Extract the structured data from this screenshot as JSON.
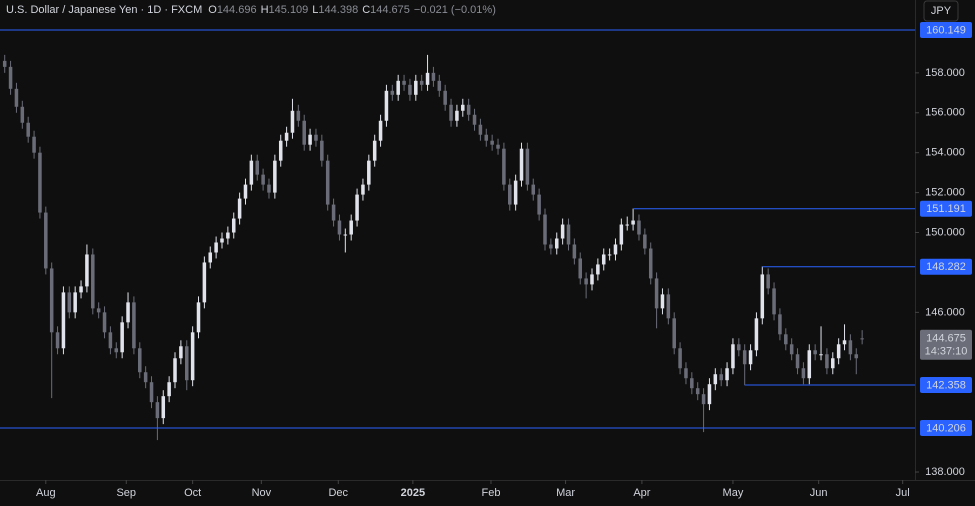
{
  "header": {
    "symbol": "U.S. Dollar / Japanese Yen · 1D · FXCM",
    "ohlc_letters": [
      "O",
      "H",
      "L",
      "C"
    ],
    "change": "−0.021 (−0.01%)",
    "currency": "JPY",
    "countdown": "14:37:10"
  },
  "chart_data": {
    "type": "candlestick",
    "up_color": "#e0e3eb",
    "down_color": "#6a6d78",
    "level_color": "#2962ff",
    "grid": false,
    "xlim": [
      -0.8,
      155
    ],
    "ylim": [
      137.6,
      161.65
    ],
    "xticks": [
      {
        "value": 7,
        "label": "Aug"
      },
      {
        "value": 20.7,
        "label": "Sep"
      },
      {
        "value": 32,
        "label": "Oct"
      },
      {
        "value": 43.7,
        "label": "Nov"
      },
      {
        "value": 56.8,
        "label": "Dec"
      },
      {
        "value": 69.5,
        "label": "2025"
      },
      {
        "value": 82.8,
        "label": "Feb"
      },
      {
        "value": 95.5,
        "label": "Mar"
      },
      {
        "value": 108.5,
        "label": "Apr"
      },
      {
        "value": 124,
        "label": "May"
      },
      {
        "value": 138.6,
        "label": "Jun"
      },
      {
        "value": 152.9,
        "label": "Jul"
      }
    ],
    "yticks": [
      {
        "value": 138,
        "label": "138.000"
      },
      {
        "value": 146,
        "label": "146.000"
      },
      {
        "value": 150,
        "label": "150.000"
      },
      {
        "value": 152,
        "label": "152.000"
      },
      {
        "value": 154,
        "label": "154.000"
      },
      {
        "value": 156,
        "label": "156.000"
      },
      {
        "value": 158,
        "label": "158.000"
      }
    ],
    "levels": [
      {
        "value": 160.149,
        "extend": "both"
      },
      {
        "value": 151.191,
        "extend": "right"
      },
      {
        "value": 148.282,
        "extend": "right"
      },
      {
        "value": 142.358,
        "extend": "right"
      },
      {
        "value": 140.206,
        "extend": "both"
      }
    ],
    "candles": [
      [
        158.6,
        158.9,
        158.0,
        158.3
      ],
      [
        158.3,
        158.6,
        156.9,
        157.2
      ],
      [
        157.2,
        157.5,
        156.0,
        156.3
      ],
      [
        156.3,
        156.6,
        155.2,
        155.5
      ],
      [
        155.5,
        155.8,
        154.5,
        154.8
      ],
      [
        154.8,
        155.1,
        153.7,
        154.0
      ],
      [
        154.0,
        154.3,
        150.7,
        151.0
      ],
      [
        151.0,
        151.3,
        147.9,
        148.2
      ],
      [
        148.2,
        148.5,
        141.7,
        145.0
      ],
      [
        145.0,
        145.3,
        143.9,
        144.2
      ],
      [
        144.2,
        147.3,
        143.9,
        147.0
      ],
      [
        147.0,
        147.3,
        145.7,
        146.0
      ],
      [
        146.0,
        147.3,
        145.7,
        147.0
      ],
      [
        147.0,
        147.6,
        146.7,
        147.3
      ],
      [
        147.3,
        149.4,
        147.0,
        148.9
      ],
      [
        148.9,
        149.2,
        145.9,
        146.2
      ],
      [
        146.2,
        146.5,
        145.7,
        146.0
      ],
      [
        146.0,
        146.3,
        144.7,
        145.0
      ],
      [
        145.0,
        145.3,
        143.9,
        144.2
      ],
      [
        144.2,
        144.5,
        143.7,
        144.0
      ],
      [
        144.0,
        145.8,
        143.7,
        145.5
      ],
      [
        145.5,
        147.0,
        145.2,
        146.5
      ],
      [
        146.5,
        146.8,
        143.9,
        144.2
      ],
      [
        144.2,
        144.5,
        142.7,
        143.0
      ],
      [
        143.0,
        143.3,
        142.2,
        142.5
      ],
      [
        142.5,
        142.8,
        141.2,
        141.5
      ],
      [
        141.5,
        141.8,
        139.6,
        140.7
      ],
      [
        140.7,
        142.1,
        140.4,
        141.8
      ],
      [
        141.8,
        142.8,
        141.5,
        142.5
      ],
      [
        142.5,
        144.0,
        142.2,
        143.7
      ],
      [
        143.7,
        144.6,
        143.4,
        144.3
      ],
      [
        144.3,
        144.6,
        142.1,
        142.6
      ],
      [
        142.6,
        145.3,
        142.3,
        145.0
      ],
      [
        145.0,
        146.8,
        144.7,
        146.5
      ],
      [
        146.5,
        148.8,
        146.2,
        148.5
      ],
      [
        148.5,
        149.3,
        148.2,
        149.0
      ],
      [
        149.0,
        149.8,
        148.7,
        149.5
      ],
      [
        149.5,
        150.0,
        149.2,
        149.7
      ],
      [
        149.7,
        150.3,
        149.4,
        150.0
      ],
      [
        150.0,
        151.0,
        149.7,
        150.7
      ],
      [
        150.7,
        152.0,
        150.4,
        151.7
      ],
      [
        151.7,
        152.7,
        151.4,
        152.4
      ],
      [
        152.4,
        153.9,
        152.1,
        153.6
      ],
      [
        153.6,
        153.9,
        152.6,
        152.9
      ],
      [
        152.9,
        153.2,
        152.1,
        152.4
      ],
      [
        152.4,
        152.7,
        151.7,
        152.0
      ],
      [
        152.0,
        153.9,
        151.7,
        153.6
      ],
      [
        153.6,
        154.9,
        153.3,
        154.6
      ],
      [
        154.6,
        155.3,
        154.3,
        155.0
      ],
      [
        155.0,
        156.7,
        154.7,
        156.1
      ],
      [
        156.1,
        156.4,
        155.3,
        155.6
      ],
      [
        155.6,
        155.9,
        154.1,
        154.4
      ],
      [
        154.4,
        155.2,
        154.1,
        154.9
      ],
      [
        154.9,
        155.2,
        154.3,
        154.6
      ],
      [
        154.6,
        154.9,
        153.3,
        153.6
      ],
      [
        153.6,
        153.9,
        151.1,
        151.4
      ],
      [
        151.4,
        151.7,
        150.3,
        150.6
      ],
      [
        150.6,
        150.9,
        149.6,
        149.9
      ],
      [
        149.9,
        150.2,
        149.0,
        149.9
      ],
      [
        149.9,
        150.9,
        149.6,
        150.6
      ],
      [
        150.6,
        152.2,
        150.3,
        151.9
      ],
      [
        151.9,
        152.7,
        151.6,
        152.4
      ],
      [
        152.4,
        153.9,
        152.1,
        153.6
      ],
      [
        153.6,
        154.9,
        153.3,
        154.6
      ],
      [
        154.6,
        155.9,
        154.3,
        155.6
      ],
      [
        155.6,
        157.4,
        155.3,
        157.1
      ],
      [
        157.1,
        157.4,
        156.6,
        156.9
      ],
      [
        156.9,
        157.9,
        156.6,
        157.6
      ],
      [
        157.6,
        157.9,
        157.1,
        157.4
      ],
      [
        157.4,
        157.7,
        156.6,
        156.9
      ],
      [
        156.9,
        157.9,
        156.6,
        157.6
      ],
      [
        157.6,
        157.9,
        157.1,
        157.4
      ],
      [
        157.4,
        158.9,
        157.1,
        158.0
      ],
      [
        158.0,
        158.3,
        157.3,
        157.6
      ],
      [
        157.6,
        157.9,
        156.8,
        157.1
      ],
      [
        157.1,
        157.4,
        156.1,
        156.4
      ],
      [
        156.4,
        156.7,
        155.3,
        155.6
      ],
      [
        155.6,
        156.4,
        155.3,
        156.1
      ],
      [
        156.1,
        156.7,
        155.8,
        156.4
      ],
      [
        156.4,
        156.7,
        155.6,
        155.9
      ],
      [
        155.9,
        156.2,
        155.1,
        155.4
      ],
      [
        155.4,
        155.7,
        154.6,
        154.9
      ],
      [
        154.9,
        155.2,
        154.3,
        154.6
      ],
      [
        154.6,
        154.9,
        154.1,
        154.4
      ],
      [
        154.4,
        154.7,
        153.9,
        154.2
      ],
      [
        154.2,
        154.5,
        152.1,
        152.4
      ],
      [
        152.4,
        152.7,
        151.1,
        151.4
      ],
      [
        151.4,
        152.9,
        151.1,
        152.6
      ],
      [
        152.6,
        154.5,
        152.3,
        154.2
      ],
      [
        154.2,
        154.5,
        152.1,
        152.4
      ],
      [
        152.4,
        152.7,
        151.6,
        151.9
      ],
      [
        151.9,
        152.2,
        150.6,
        150.9
      ],
      [
        150.9,
        151.2,
        149.1,
        149.4
      ],
      [
        149.4,
        149.7,
        148.9,
        149.2
      ],
      [
        149.2,
        150.0,
        148.9,
        149.7
      ],
      [
        149.7,
        150.7,
        149.4,
        150.4
      ],
      [
        150.4,
        150.7,
        149.1,
        149.4
      ],
      [
        149.4,
        149.7,
        148.4,
        148.7
      ],
      [
        148.7,
        149.0,
        147.4,
        147.7
      ],
      [
        147.7,
        148.0,
        146.7,
        147.4
      ],
      [
        147.4,
        148.2,
        147.1,
        147.9
      ],
      [
        147.9,
        148.7,
        147.6,
        148.4
      ],
      [
        148.4,
        149.2,
        148.1,
        148.9
      ],
      [
        148.9,
        149.2,
        148.6,
        148.9
      ],
      [
        148.9,
        149.7,
        148.6,
        149.4
      ],
      [
        149.4,
        150.7,
        149.1,
        150.4
      ],
      [
        150.4,
        150.8,
        150.1,
        150.4
      ],
      [
        150.4,
        151.2,
        150.1,
        150.6
      ],
      [
        150.6,
        150.9,
        149.6,
        149.9
      ],
      [
        149.9,
        150.2,
        148.9,
        149.2
      ],
      [
        149.2,
        149.5,
        147.4,
        147.7
      ],
      [
        147.7,
        148.0,
        145.2,
        146.2
      ],
      [
        146.2,
        147.2,
        145.9,
        146.9
      ],
      [
        146.9,
        147.2,
        145.4,
        145.7
      ],
      [
        145.7,
        146.0,
        143.9,
        144.2
      ],
      [
        144.2,
        144.5,
        142.9,
        143.2
      ],
      [
        143.2,
        143.5,
        142.4,
        142.7
      ],
      [
        142.7,
        143.0,
        141.9,
        142.2
      ],
      [
        142.2,
        142.5,
        141.6,
        141.9
      ],
      [
        141.9,
        142.2,
        140.0,
        141.4
      ],
      [
        141.4,
        142.7,
        141.1,
        142.4
      ],
      [
        142.4,
        143.2,
        142.1,
        142.9
      ],
      [
        142.9,
        143.2,
        142.3,
        142.6
      ],
      [
        142.6,
        143.5,
        142.3,
        143.2
      ],
      [
        143.2,
        144.7,
        142.9,
        144.4
      ],
      [
        144.4,
        144.7,
        143.8,
        144.1
      ],
      [
        144.1,
        144.4,
        142.35,
        143.4
      ],
      [
        143.4,
        144.4,
        143.1,
        144.1
      ],
      [
        144.1,
        146.0,
        143.8,
        145.7
      ],
      [
        145.7,
        148.3,
        145.4,
        147.9
      ],
      [
        147.9,
        148.2,
        146.9,
        147.2
      ],
      [
        147.2,
        147.5,
        145.6,
        145.9
      ],
      [
        145.9,
        146.2,
        144.6,
        144.9
      ],
      [
        144.9,
        145.2,
        144.1,
        144.4
      ],
      [
        144.4,
        144.7,
        143.6,
        143.9
      ],
      [
        143.9,
        144.2,
        142.9,
        143.2
      ],
      [
        143.2,
        143.5,
        142.4,
        142.7
      ],
      [
        142.7,
        144.4,
        142.4,
        144.1
      ],
      [
        144.1,
        144.4,
        143.6,
        143.9
      ],
      [
        143.9,
        145.3,
        143.6,
        143.9
      ],
      [
        143.9,
        144.2,
        142.9,
        143.2
      ],
      [
        143.2,
        144.0,
        142.9,
        143.7
      ],
      [
        143.7,
        144.7,
        143.4,
        144.4
      ],
      [
        144.4,
        145.4,
        144.1,
        144.6
      ],
      [
        144.6,
        144.9,
        143.6,
        143.9
      ],
      [
        143.9,
        144.2,
        142.9,
        143.7
      ],
      [
        144.696,
        145.109,
        144.398,
        144.675
      ]
    ]
  }
}
